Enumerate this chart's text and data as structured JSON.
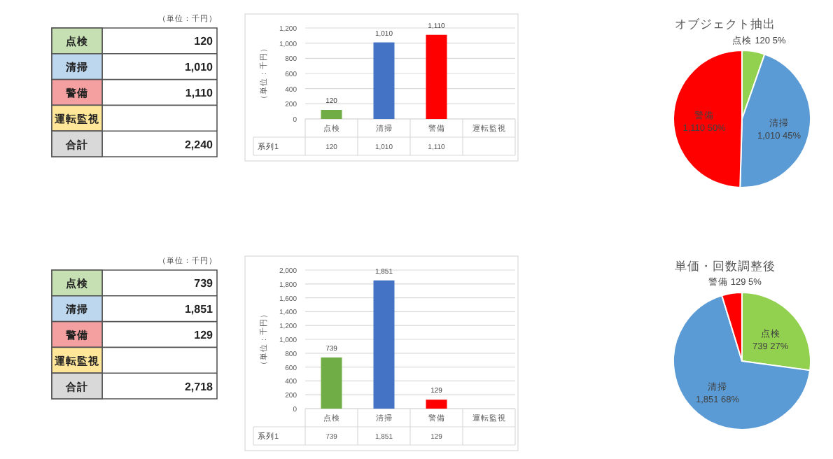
{
  "chart_data": [
    {
      "type": "other",
      "annotations": [
        "（単位：千円）"
      ],
      "categories": [
        "点検",
        "清掃",
        "警備",
        "運転監視",
        "合計"
      ],
      "values": [
        120,
        1010,
        1110,
        null,
        2240
      ],
      "value_labels": [
        "120",
        "1,010",
        "1,110",
        null,
        "2,240"
      ],
      "colors": [
        "#c6e0b4",
        "#bdd7ee",
        "#f4a0a0",
        "#ffe699",
        "#d9d9d9"
      ]
    },
    {
      "type": "bar",
      "ylabel": "（単位：千円）",
      "categories": [
        "点検",
        "清掃",
        "警備",
        "運転監視"
      ],
      "colors": [
        "#70ad47",
        "#4472c4",
        "#ff0000"
      ],
      "series": [
        {
          "name": "系列1",
          "values": [
            120,
            1010,
            1110,
            null
          ],
          "value_labels": [
            "120",
            "1,010",
            "1,110",
            null
          ]
        }
      ],
      "ylim": [
        0,
        1200
      ],
      "yticks": [
        0,
        200,
        400,
        600,
        800,
        {
          "value": 1000,
          "label": "1,000"
        },
        {
          "value": 1200,
          "label": "1,200"
        }
      ],
      "grid": "y"
    },
    {
      "type": "pie",
      "title": "オブジェクト抽出",
      "categories": [
        "点検",
        "清掃",
        "警備"
      ],
      "values": [
        120,
        1010,
        1110
      ],
      "value_labels": [
        "120 5%",
        "1,010 45%",
        "1,110 50%"
      ],
      "colors": [
        "#92d050",
        "#5b9bd5",
        "#ff0000"
      ]
    },
    {
      "type": "other",
      "annotations": [
        "（単位：千円）"
      ],
      "categories": [
        "点検",
        "清掃",
        "警備",
        "運転監視",
        "合計"
      ],
      "values": [
        739,
        1851,
        129,
        null,
        2718
      ],
      "value_labels": [
        "739",
        "1,851",
        "129",
        null,
        "2,718"
      ],
      "colors": [
        "#c6e0b4",
        "#bdd7ee",
        "#f4a0a0",
        "#ffe699",
        "#d9d9d9"
      ]
    },
    {
      "type": "bar",
      "ylabel": "（単位：千円）",
      "categories": [
        "点検",
        "清掃",
        "警備",
        "運転監視"
      ],
      "colors": [
        "#70ad47",
        "#4472c4",
        "#ff0000"
      ],
      "series": [
        {
          "name": "系列1",
          "values": [
            739,
            1851,
            129,
            null
          ],
          "value_labels": [
            "739",
            "1,851",
            "129",
            null
          ]
        }
      ],
      "ylim": [
        0,
        2000
      ],
      "yticks": [
        0,
        200,
        400,
        600,
        800,
        {
          "value": 1000,
          "label": "1,000"
        },
        {
          "value": 1200,
          "label": "1,200"
        },
        {
          "value": 1400,
          "label": "1,400"
        },
        {
          "value": 1600,
          "label": "1,600"
        },
        {
          "value": 1800,
          "label": "1,800"
        },
        {
          "value": 2000,
          "label": "2,000"
        }
      ],
      "grid": "y"
    },
    {
      "type": "pie",
      "title": "単価・回数調整後",
      "categories": [
        "点検",
        "清掃",
        "警備"
      ],
      "values": [
        739,
        1851,
        129
      ],
      "value_labels": [
        "739 27%",
        "1,851 68%",
        "129 5%"
      ],
      "colors": [
        "#92d050",
        "#5b9bd5",
        "#ff0000"
      ]
    }
  ]
}
